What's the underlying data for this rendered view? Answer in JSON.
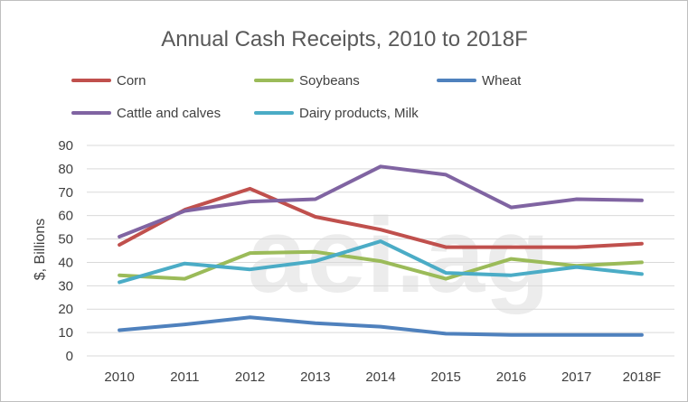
{
  "chart_data": {
    "type": "line",
    "title": "Annual Cash Receipts, 2010 to 2018F",
    "xlabel": "",
    "ylabel": "$, Billions",
    "categories": [
      "2010",
      "2011",
      "2012",
      "2013",
      "2014",
      "2015",
      "2016",
      "2017",
      "2018F"
    ],
    "ylim": [
      0,
      90
    ],
    "yticks": [
      0,
      10,
      20,
      30,
      40,
      50,
      60,
      70,
      80,
      90
    ],
    "grid": true,
    "legend_position": "top",
    "watermark": "aei.ag",
    "series": [
      {
        "name": "Corn",
        "color": "#c0504d",
        "values": [
          47.5,
          62.5,
          71.5,
          59.5,
          54,
          46.5,
          46.5,
          46.5,
          48
        ]
      },
      {
        "name": "Soybeans",
        "color": "#9bbb59",
        "values": [
          34.5,
          33,
          44,
          44.5,
          40.5,
          33,
          41.5,
          38.5,
          40
        ]
      },
      {
        "name": "Wheat",
        "color": "#4f81bd",
        "values": [
          11,
          13.5,
          16.5,
          14,
          12.5,
          9.5,
          9,
          9,
          9
        ]
      },
      {
        "name": "Cattle and calves",
        "color": "#8064a2",
        "values": [
          51,
          62,
          66,
          67,
          81,
          77.5,
          63.5,
          67,
          66.5
        ]
      },
      {
        "name": "Dairy products, Milk",
        "color": "#4bacc6",
        "values": [
          31.5,
          39.5,
          37,
          40.5,
          49,
          35.5,
          34.5,
          38,
          35
        ]
      }
    ]
  }
}
